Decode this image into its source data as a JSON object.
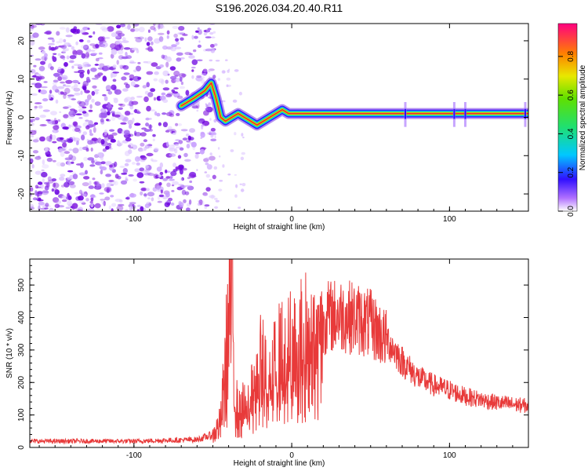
{
  "title": "S196.2026.034.20.40.R11",
  "colors": {
    "snr_line": "#e83a3a",
    "speckle": "#8a2be2",
    "trace_core": "#e8203a",
    "axis": "#000000"
  },
  "chart_data": [
    {
      "type": "heatmap",
      "name": "spectrogram",
      "xlabel": "Height of straight line (km)",
      "ylabel": "Frequency (Hz)",
      "xlim": [
        -166,
        150
      ],
      "ylim": [
        -24.5,
        24.5
      ],
      "xticks": [
        -100,
        0,
        100
      ],
      "yticks": [
        -20,
        -10,
        0,
        10,
        20
      ],
      "colorbar": {
        "label": "Normalized spectral amplitude",
        "range": [
          0,
          0.97
        ],
        "ticks": [
          0.0,
          0.2,
          0.4,
          0.6,
          0.8
        ]
      },
      "noise_region_x": [
        -166,
        -55
      ],
      "trace": {
        "x": [
          -70,
          -62,
          -55,
          -51,
          -48,
          -45,
          -42,
          -38,
          -34,
          -30,
          -26,
          -22,
          -18,
          -14,
          -10,
          -6,
          -2,
          5,
          20,
          50,
          75,
          100,
          120,
          140,
          150
        ],
        "y": [
          3,
          5,
          7,
          9,
          5,
          0,
          -1,
          0,
          1,
          0,
          -1,
          -2,
          -1,
          0,
          1,
          2,
          1,
          1,
          1,
          1,
          1,
          1,
          1,
          1,
          1
        ]
      }
    },
    {
      "type": "line",
      "name": "snr",
      "xlabel": "Height of straight line (km)",
      "ylabel": "SNR (10 * v/v)",
      "xlim": [
        -166,
        150
      ],
      "ylim": [
        0,
        580
      ],
      "xticks": [
        -100,
        0,
        100
      ],
      "yticks": [
        0,
        100,
        200,
        300,
        400,
        500
      ],
      "envelope": {
        "x": [
          -166,
          -100,
          -60,
          -50,
          -45,
          -42,
          -40,
          -38,
          -36,
          -34,
          -30,
          -25,
          -20,
          -15,
          -10,
          -5,
          0,
          10,
          20,
          30,
          40,
          50,
          60,
          70,
          80,
          90,
          100,
          110,
          120,
          130,
          140,
          150
        ],
        "y": [
          20,
          20,
          25,
          40,
          80,
          250,
          400,
          520,
          180,
          100,
          130,
          200,
          280,
          250,
          300,
          320,
          340,
          380,
          410,
          420,
          410,
          390,
          340,
          270,
          220,
          195,
          180,
          160,
          150,
          140,
          135,
          130
        ]
      }
    }
  ]
}
